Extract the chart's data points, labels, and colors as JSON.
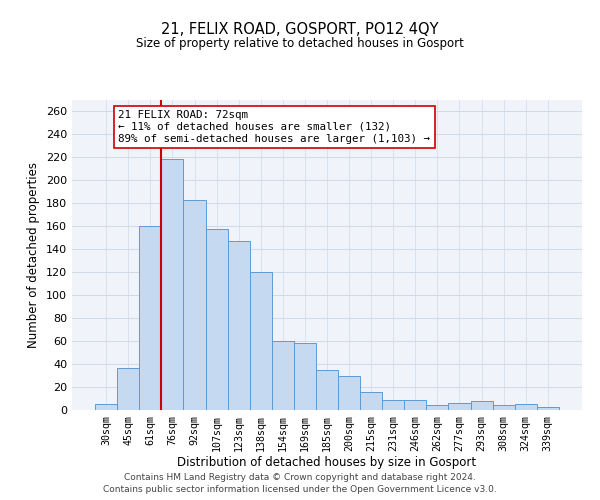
{
  "title": "21, FELIX ROAD, GOSPORT, PO12 4QY",
  "subtitle": "Size of property relative to detached houses in Gosport",
  "xlabel": "Distribution of detached houses by size in Gosport",
  "ylabel": "Number of detached properties",
  "bar_labels": [
    "30sqm",
    "45sqm",
    "61sqm",
    "76sqm",
    "92sqm",
    "107sqm",
    "123sqm",
    "138sqm",
    "154sqm",
    "169sqm",
    "185sqm",
    "200sqm",
    "215sqm",
    "231sqm",
    "246sqm",
    "262sqm",
    "277sqm",
    "293sqm",
    "308sqm",
    "324sqm",
    "339sqm"
  ],
  "bar_values": [
    5,
    37,
    160,
    219,
    183,
    158,
    147,
    120,
    60,
    58,
    35,
    30,
    16,
    9,
    9,
    4,
    6,
    8,
    4,
    5,
    3
  ],
  "bar_color": "#c5d9f1",
  "bar_edge_color": "#5b9bd5",
  "marker_bin_index": 3,
  "marker_color": "#cc0000",
  "annotation_line1": "21 FELIX ROAD: 72sqm",
  "annotation_line2": "← 11% of detached houses are smaller (132)",
  "annotation_line3": "89% of semi-detached houses are larger (1,103) →",
  "annotation_box_color": "#ffffff",
  "annotation_box_edge": "#cc0000",
  "ylim": [
    0,
    270
  ],
  "yticks": [
    0,
    20,
    40,
    60,
    80,
    100,
    120,
    140,
    160,
    180,
    200,
    220,
    240,
    260
  ],
  "footnote1": "Contains HM Land Registry data © Crown copyright and database right 2024.",
  "footnote2": "Contains public sector information licensed under the Open Government Licence v3.0.",
  "bg_color": "#f0f4fa",
  "grid_color": "#d0dae8"
}
